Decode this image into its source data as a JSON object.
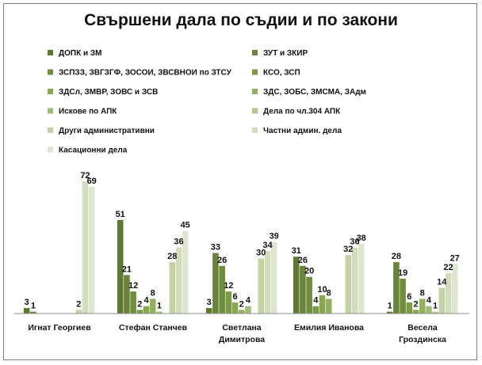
{
  "chart_data": {
    "type": "bar",
    "title": "Свършени дала по съдии и по закони",
    "categories": [
      "Игнат Георгиев",
      "Стефан Станчев",
      "Светлана Димитрова",
      "Емилия Иванова",
      "Весела Гроздинска"
    ],
    "ylim": [
      0,
      80
    ],
    "grid": false,
    "legend_position": "top",
    "series": [
      {
        "name": "ДОПК и ЗМ",
        "color": "#5e7a32",
        "values": [
          3,
          51,
          3,
          31,
          1
        ]
      },
      {
        "name": "ЗУТ и ЗКИР",
        "color": "#67843a",
        "values": [
          1,
          21,
          33,
          26,
          28
        ]
      },
      {
        "name": "ЗСПЗЗ, ЗВГЗГФ, ЗОСОИ, ЗВСВНОИ по ЗТСУ",
        "color": "#6f8d3d",
        "values": [
          0,
          12,
          26,
          20,
          19
        ]
      },
      {
        "name": "КСО, ЗСП",
        "color": "#7a9a45",
        "values": [
          0,
          2,
          12,
          4,
          6
        ]
      },
      {
        "name": "ЗДСл, ЗМВР, ЗОВС и    ЗСВ",
        "color": "#86a650",
        "values": [
          0,
          4,
          6,
          10,
          2
        ]
      },
      {
        "name": "ЗДС, ЗОБС, ЗМСМА, ЗАдм",
        "color": "#92b05e",
        "values": [
          0,
          8,
          2,
          8,
          8
        ]
      },
      {
        "name": "Искове по АПК",
        "color": "#a1bb74",
        "values": [
          0,
          1,
          4,
          0,
          4
        ]
      },
      {
        "name": "Дела по чл.304 АПК",
        "color": "#b2c78e",
        "values": [
          0,
          0,
          0,
          0,
          1
        ]
      },
      {
        "name": "Други административни",
        "color": "#c3d3a7",
        "values": [
          2,
          28,
          30,
          32,
          14
        ]
      },
      {
        "name": "Частни админ. дела",
        "color": "#d1ddbd",
        "values": [
          72,
          36,
          34,
          36,
          22
        ]
      },
      {
        "name": "Касационни дела",
        "color": "#dde6cf",
        "values": [
          69,
          45,
          39,
          38,
          27
        ]
      }
    ]
  }
}
